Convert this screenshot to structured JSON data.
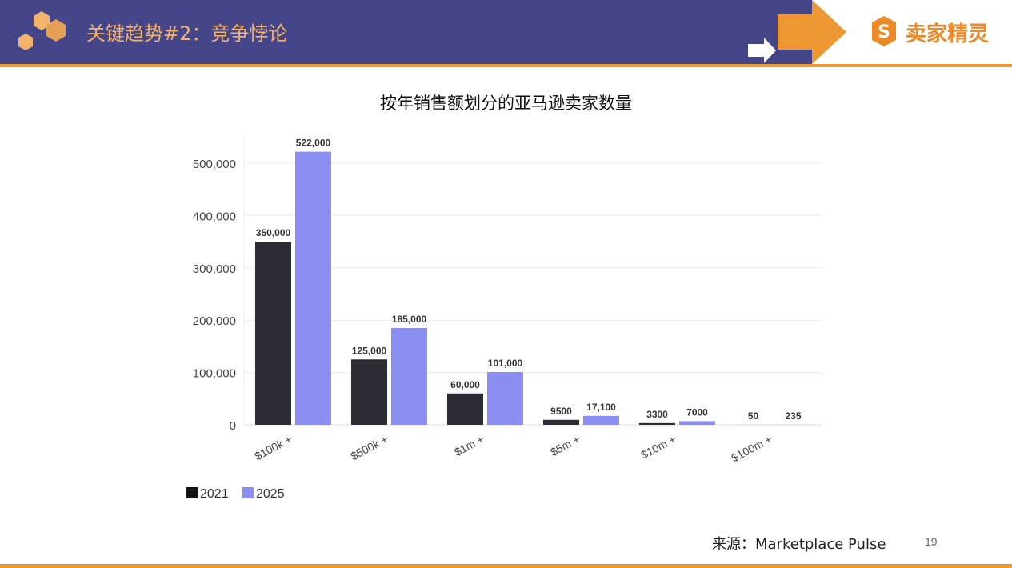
{
  "header": {
    "title": "关键趋势#2：竞争悖论",
    "logo_text": "卖家精灵"
  },
  "colors": {
    "header_bg": "#454689",
    "accent": "#ec9732",
    "series_2021": "#2b2b33",
    "series_2025": "#8a8ef0"
  },
  "chart_data": {
    "type": "bar",
    "title": "按年销售额划分的亚马逊卖家数量",
    "categories": [
      "$100k +",
      "$500k +",
      "$1m +",
      "$5m +",
      "$10m +",
      "$100m +"
    ],
    "series": [
      {
        "name": "2021",
        "values": [
          350000,
          125000,
          60000,
          9500,
          3300,
          50
        ],
        "labels": [
          "350,000",
          "125,000",
          "60,000",
          "9500",
          "3300",
          "50"
        ]
      },
      {
        "name": "2025",
        "values": [
          522000,
          185000,
          101000,
          17100,
          7000,
          235
        ],
        "labels": [
          "522,000",
          "185,000",
          "101,000",
          "17,100",
          "7000",
          "235"
        ]
      }
    ],
    "yticks": [
      0,
      100000,
      200000,
      300000,
      400000,
      500000
    ],
    "ytick_labels": [
      "0",
      "100,000",
      "200,000",
      "300,000",
      "400,000",
      "500,000"
    ],
    "ylim": [
      0,
      540000
    ],
    "grid": true,
    "legend_position": "bottom-left"
  },
  "footer": {
    "source": "来源：Marketplace Pulse",
    "page": "19"
  }
}
